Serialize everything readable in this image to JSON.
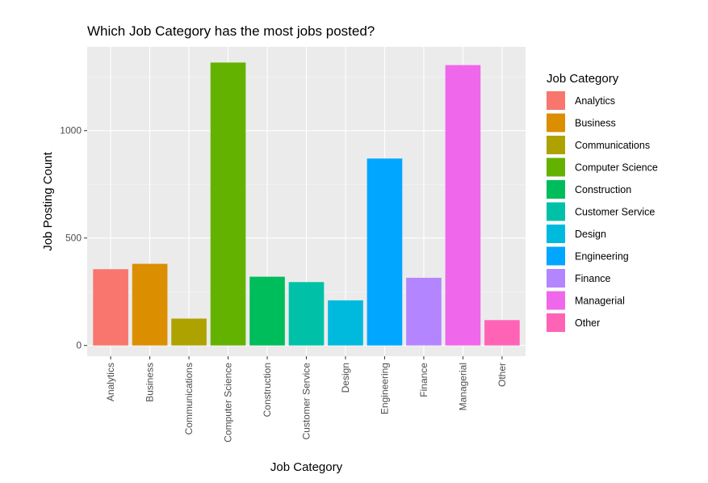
{
  "chart_data": {
    "type": "bar",
    "title": "Which Job Category has the most jobs posted?",
    "xlabel": "Job Category",
    "ylabel": "Job Posting Count",
    "categories": [
      "Analytics",
      "Business",
      "Communications",
      "Computer Science",
      "Construction",
      "Customer Service",
      "Design",
      "Engineering",
      "Finance",
      "Managerial",
      "Other"
    ],
    "values": [
      355,
      380,
      125,
      1317,
      320,
      295,
      210,
      870,
      315,
      1305,
      118
    ],
    "colors": [
      "#F8766D",
      "#DB8E00",
      "#AEA200",
      "#64B200",
      "#00BD5C",
      "#00C1A7",
      "#00BADE",
      "#00A6FF",
      "#B385FF",
      "#EF67EB",
      "#FF63B6"
    ],
    "ylim": [
      -50,
      1390
    ],
    "yticks": [
      0,
      500,
      1000
    ],
    "grid": true,
    "panel_background": "#EBEBEB",
    "legend": {
      "title": "Job Category",
      "position": "right"
    }
  }
}
